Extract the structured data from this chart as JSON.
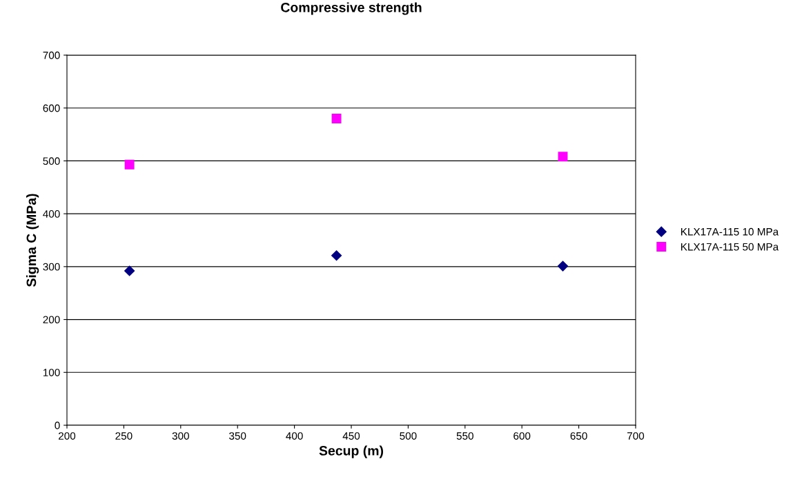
{
  "chart_data": {
    "type": "scatter",
    "title": "Compressive strength",
    "xlabel": "Secup (m)",
    "ylabel": "Sigma C (MPa)",
    "xlim": [
      200,
      700
    ],
    "xticks": [
      200,
      250,
      300,
      350,
      400,
      450,
      500,
      550,
      600,
      650,
      700
    ],
    "ylim": [
      0,
      700
    ],
    "yticks": [
      0,
      100,
      200,
      300,
      400,
      500,
      600,
      700
    ],
    "grid": "y",
    "legend": "right",
    "series": [
      {
        "name": "KLX17A-115 10 MPa",
        "color": "#000080",
        "marker": "diamond",
        "x": [
          255,
          437,
          636
        ],
        "values": [
          292,
          321,
          301
        ]
      },
      {
        "name": "KLX17A-115 50 MPa",
        "color": "#ff00ff",
        "marker": "square",
        "x": [
          255,
          437,
          636
        ],
        "values": [
          493,
          580,
          508
        ]
      }
    ]
  }
}
